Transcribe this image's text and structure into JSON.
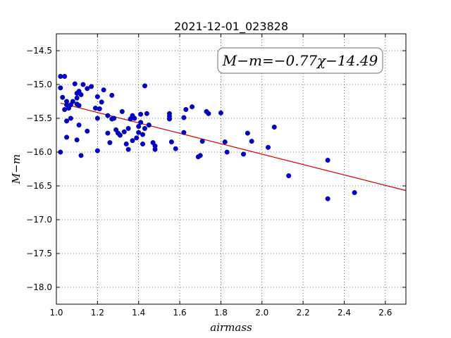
{
  "chart_data": {
    "type": "scatter",
    "title": "2021-12-01_023828",
    "xlabel": "airmass",
    "ylabel": "M−m",
    "xlim": [
      1.0,
      2.7
    ],
    "ylim": [
      -18.25,
      -14.25
    ],
    "x_ticks": [
      1.0,
      1.2,
      1.4,
      1.6,
      1.8,
      2.0,
      2.2,
      2.4,
      2.6
    ],
    "x_tick_labels": [
      "1.0",
      "1.2",
      "1.4",
      "1.6",
      "1.8",
      "2.0",
      "2.2",
      "2.4",
      "2.6"
    ],
    "y_ticks": [
      -14.5,
      -15.0,
      -15.5,
      -16.0,
      -16.5,
      -17.0,
      -17.5,
      -18.0
    ],
    "y_tick_labels": [
      "−14.5",
      "−15.0",
      "−15.5",
      "−16.0",
      "−16.5",
      "−17.0",
      "−17.5",
      "−18.0"
    ],
    "grid": true,
    "annotation": "M−m=−0.77χ−14.49",
    "fit": {
      "slope": -0.77,
      "intercept": -14.49,
      "x_range": [
        1.02,
        2.7
      ],
      "color": "#d40000"
    },
    "point_color": "#0000cc",
    "points": [
      [
        1.02,
        -14.88
      ],
      [
        1.04,
        -14.88
      ],
      [
        1.02,
        -15.05
      ],
      [
        1.03,
        -15.19
      ],
      [
        1.02,
        -16.0
      ],
      [
        1.04,
        -15.37
      ],
      [
        1.05,
        -15.25
      ],
      [
        1.05,
        -15.3
      ],
      [
        1.06,
        -15.35
      ],
      [
        1.05,
        -15.54
      ],
      [
        1.05,
        -15.78
      ],
      [
        1.07,
        -15.5
      ],
      [
        1.07,
        -15.3
      ],
      [
        1.08,
        -15.25
      ],
      [
        1.09,
        -14.99
      ],
      [
        1.1,
        -15.13
      ],
      [
        1.1,
        -15.2
      ],
      [
        1.1,
        -15.29
      ],
      [
        1.11,
        -15.1
      ],
      [
        1.12,
        -15.15
      ],
      [
        1.13,
        -15.0
      ],
      [
        1.11,
        -15.31
      ],
      [
        1.11,
        -15.6
      ],
      [
        1.1,
        -15.82
      ],
      [
        1.12,
        -16.05
      ],
      [
        1.15,
        -15.06
      ],
      [
        1.15,
        -15.69
      ],
      [
        1.17,
        -15.03
      ],
      [
        1.19,
        -15.35
      ],
      [
        1.2,
        -15.18
      ],
      [
        1.21,
        -15.36
      ],
      [
        1.2,
        -15.5
      ],
      [
        1.2,
        -15.98
      ],
      [
        1.22,
        -15.26
      ],
      [
        1.23,
        -15.08
      ],
      [
        1.25,
        -15.46
      ],
      [
        1.25,
        -15.72
      ],
      [
        1.26,
        -15.86
      ],
      [
        1.27,
        -15.16
      ],
      [
        1.27,
        -15.51
      ],
      [
        1.28,
        -15.5
      ],
      [
        1.29,
        -15.67
      ],
      [
        1.3,
        -15.72
      ],
      [
        1.31,
        -15.75
      ],
      [
        1.32,
        -15.4
      ],
      [
        1.33,
        -15.7
      ],
      [
        1.34,
        -15.88
      ],
      [
        1.35,
        -15.65
      ],
      [
        1.35,
        -15.96
      ],
      [
        1.36,
        -15.51
      ],
      [
        1.37,
        -15.83
      ],
      [
        1.37,
        -15.46
      ],
      [
        1.38,
        -15.5
      ],
      [
        1.39,
        -15.79
      ],
      [
        1.4,
        -15.71
      ],
      [
        1.4,
        -15.62
      ],
      [
        1.41,
        -15.56
      ],
      [
        1.41,
        -15.44
      ],
      [
        1.42,
        -15.74
      ],
      [
        1.42,
        -15.88
      ],
      [
        1.43,
        -15.65
      ],
      [
        1.43,
        -15.02
      ],
      [
        1.44,
        -15.43
      ],
      [
        1.45,
        -15.6
      ],
      [
        1.47,
        -15.86
      ],
      [
        1.48,
        -15.91
      ],
      [
        1.48,
        -15.96
      ],
      [
        1.55,
        -15.43
      ],
      [
        1.55,
        -15.47
      ],
      [
        1.55,
        -15.51
      ],
      [
        1.56,
        -15.85
      ],
      [
        1.58,
        -15.95
      ],
      [
        1.62,
        -15.71
      ],
      [
        1.62,
        -15.49
      ],
      [
        1.63,
        -15.37
      ],
      [
        1.66,
        -15.33
      ],
      [
        1.69,
        -16.07
      ],
      [
        1.7,
        -16.05
      ],
      [
        1.71,
        -15.84
      ],
      [
        1.73,
        -15.4
      ],
      [
        1.74,
        -15.43
      ],
      [
        1.8,
        -15.42
      ],
      [
        1.82,
        -15.85
      ],
      [
        1.83,
        -16.0
      ],
      [
        1.91,
        -16.03
      ],
      [
        1.93,
        -15.72
      ],
      [
        1.95,
        -15.84
      ],
      [
        2.03,
        -15.93
      ],
      [
        2.06,
        -15.63
      ],
      [
        2.13,
        -16.35
      ],
      [
        2.32,
        -16.12
      ],
      [
        2.32,
        -16.69
      ],
      [
        2.45,
        -16.6
      ]
    ]
  }
}
